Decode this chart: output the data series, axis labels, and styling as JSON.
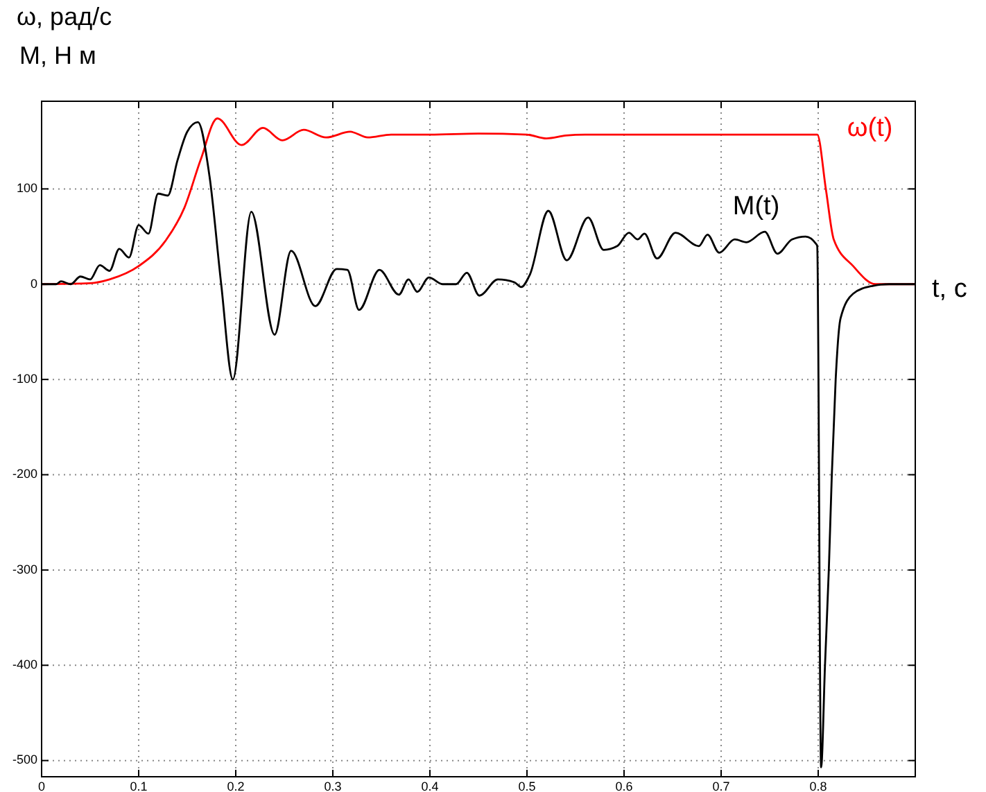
{
  "chart_data": {
    "type": "line",
    "xlabel": "t, с",
    "ylabel": "ω, рад/с\nM, Н м",
    "xlim": [
      0,
      0.9
    ],
    "ylim": [
      -517,
      192
    ],
    "xticks": [
      0,
      0.1,
      0.2,
      0.3,
      0.4,
      0.5,
      0.6,
      0.7,
      0.8
    ],
    "yticks": [
      -500,
      -400,
      -300,
      -200,
      -100,
      0,
      100
    ],
    "grid": true,
    "line_style": "solid",
    "marker": "none",
    "series": [
      {
        "name": "ω(t)",
        "color": "#ff0000",
        "x": [
          0,
          0.05,
          0.07,
          0.1,
          0.128,
          0.147,
          0.164,
          0.181,
          0.206,
          0.228,
          0.248,
          0.27,
          0.293,
          0.318,
          0.336,
          0.36,
          0.4,
          0.45,
          0.5,
          0.52,
          0.54,
          0.56,
          0.6,
          0.7,
          0.799,
          0.808,
          0.816,
          0.836,
          0.859,
          0.9
        ],
        "values": [
          0,
          1,
          5,
          19,
          46,
          80,
          131,
          174,
          146,
          164,
          151,
          162,
          154,
          160,
          154,
          157,
          157,
          158,
          157,
          153,
          156,
          157,
          157,
          157,
          157,
          99,
          47,
          19,
          0,
          0
        ]
      },
      {
        "name": "M(t)",
        "color": "#000000",
        "x": [
          0,
          0.015,
          0.02,
          0.03,
          0.04,
          0.05,
          0.06,
          0.07,
          0.08,
          0.09,
          0.1,
          0.11,
          0.12,
          0.13,
          0.14,
          0.15,
          0.161,
          0.173,
          0.185,
          0.197,
          0.216,
          0.24,
          0.257,
          0.282,
          0.304,
          0.315,
          0.327,
          0.348,
          0.368,
          0.378,
          0.387,
          0.399,
          0.413,
          0.427,
          0.438,
          0.451,
          0.47,
          0.487,
          0.494,
          0.503,
          0.522,
          0.541,
          0.563,
          0.579,
          0.593,
          0.605,
          0.614,
          0.621,
          0.634,
          0.653,
          0.677,
          0.686,
          0.698,
          0.714,
          0.726,
          0.745,
          0.758,
          0.773,
          0.787,
          0.798,
          0.799,
          0.803,
          0.807,
          0.811,
          0.814,
          0.818,
          0.823,
          0.836,
          0.855,
          0.873,
          0.9
        ],
        "values": [
          0,
          0,
          3,
          0,
          8,
          5,
          20,
          14,
          37,
          28,
          62,
          53,
          95,
          93,
          130,
          160,
          170,
          113,
          0,
          -100,
          76,
          -53,
          35,
          -23,
          16,
          15,
          -27,
          15,
          -11,
          5,
          -8,
          7,
          0,
          0,
          12,
          -12,
          5,
          2,
          -3,
          10,
          77,
          25,
          70,
          36,
          40,
          54,
          47,
          53,
          27,
          54,
          40,
          52,
          33,
          47,
          44,
          55,
          32,
          47,
          50,
          42,
          40,
          -507,
          -400,
          -298,
          -201,
          -100,
          -36,
          -10,
          -2,
          0,
          0
        ]
      }
    ]
  }
}
